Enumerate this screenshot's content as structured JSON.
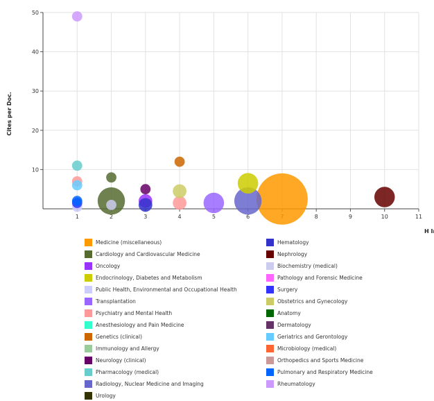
{
  "chart_data": {
    "type": "scatter",
    "title": "",
    "xlabel": "H Index",
    "ylabel": "Cites per Doc.",
    "xlim": [
      0,
      11
    ],
    "ylim": [
      0,
      50
    ],
    "x_ticks": [
      1,
      2,
      3,
      4,
      5,
      6,
      7,
      8,
      9,
      10,
      11
    ],
    "y_ticks": [
      10,
      20,
      30,
      40,
      50
    ],
    "grid": true,
    "legend_position": "bottom",
    "series": [
      {
        "name": "Medicine (miscellaneous)",
        "color": "#ff9900",
        "points": [
          {
            "x": 7,
            "y": 2.5,
            "size": 7.5
          }
        ]
      },
      {
        "name": "Cardiology and Cardiovascular Medicine",
        "color": "#556b2f",
        "points": [
          {
            "x": 2,
            "y": 8,
            "size": 1.5
          },
          {
            "x": 2,
            "y": 2,
            "size": 4
          }
        ]
      },
      {
        "name": "Oncology",
        "color": "#9933ff",
        "points": [
          {
            "x": 3,
            "y": 2,
            "size": 2
          }
        ]
      },
      {
        "name": "Endocrinology, Diabetes and Metabolism",
        "color": "#cccc00",
        "points": [
          {
            "x": 6,
            "y": 6.5,
            "size": 3
          }
        ]
      },
      {
        "name": "Public Health, Environmental and Occupational Health",
        "color": "#ccccff",
        "points": [
          {
            "x": 1,
            "y": 0.5,
            "size": 1.5
          }
        ]
      },
      {
        "name": "Transplantation",
        "color": "#9966ff",
        "points": [
          {
            "x": 5,
            "y": 1.5,
            "size": 3
          }
        ]
      },
      {
        "name": "Psychiatry and Mental Health",
        "color": "#ff9999",
        "points": [
          {
            "x": 1,
            "y": 7,
            "size": 1.5
          },
          {
            "x": 4,
            "y": 1.5,
            "size": 2
          }
        ]
      },
      {
        "name": "Anesthesiology and Pain Medicine",
        "color": "#33ffcc",
        "points": []
      },
      {
        "name": "Genetics (clinical)",
        "color": "#cc6600",
        "points": [
          {
            "x": 4,
            "y": 12,
            "size": 1.5
          }
        ]
      },
      {
        "name": "Immunology and Allergy",
        "color": "#99cc99",
        "points": []
      },
      {
        "name": "Neurology (clinical)",
        "color": "#660066",
        "points": [
          {
            "x": 3,
            "y": 5,
            "size": 1.5
          }
        ]
      },
      {
        "name": "Pharmacology (medical)",
        "color": "#66cccc",
        "points": [
          {
            "x": 1,
            "y": 11,
            "size": 1.5
          }
        ]
      },
      {
        "name": "Radiology, Nuclear Medicine and Imaging",
        "color": "#6666cc",
        "points": [
          {
            "x": 6,
            "y": 2,
            "size": 4
          }
        ]
      },
      {
        "name": "Urology",
        "color": "#333300",
        "points": []
      },
      {
        "name": "Hematology",
        "color": "#3333cc",
        "points": [
          {
            "x": 3,
            "y": 1,
            "size": 2
          }
        ]
      },
      {
        "name": "Nephrology",
        "color": "#660000",
        "points": [
          {
            "x": 10,
            "y": 3,
            "size": 3
          }
        ]
      },
      {
        "name": "Biochemistry (medical)",
        "color": "#ccccee",
        "points": [
          {
            "x": 2,
            "y": 1,
            "size": 1.5
          }
        ]
      },
      {
        "name": "Pathology and Forensic Medicine",
        "color": "#ff66ff",
        "points": []
      },
      {
        "name": "Surgery",
        "color": "#3333ff",
        "points": [
          {
            "x": 1,
            "y": 1.5,
            "size": 1.5
          }
        ]
      },
      {
        "name": "Obstetrics and Gynecology",
        "color": "#cccc66",
        "points": [
          {
            "x": 4,
            "y": 4.5,
            "size": 2
          }
        ]
      },
      {
        "name": "Anatomy",
        "color": "#006600",
        "points": []
      },
      {
        "name": "Dermatology",
        "color": "#663366",
        "points": []
      },
      {
        "name": "Geriatrics and Gerontology",
        "color": "#66ccff",
        "points": [
          {
            "x": 1,
            "y": 6,
            "size": 1.5
          }
        ]
      },
      {
        "name": "Microbiology (medical)",
        "color": "#ff6633",
        "points": []
      },
      {
        "name": "Orthopedics and Sports Medicine",
        "color": "#cc9999",
        "points": []
      },
      {
        "name": "Pulmonary and Respiratory Medicine",
        "color": "#0066ff",
        "points": [
          {
            "x": 1,
            "y": 2,
            "size": 1.5
          }
        ]
      },
      {
        "name": "Rheumatology",
        "color": "#cc99ff",
        "points": [
          {
            "x": 1,
            "y": 49,
            "size": 1.5
          }
        ]
      }
    ]
  }
}
